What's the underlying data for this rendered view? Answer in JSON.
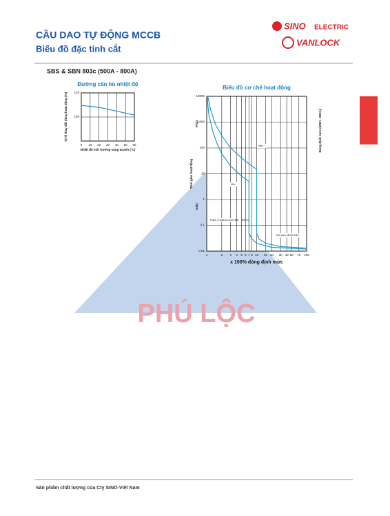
{
  "header": {
    "title": "CẦU DAO TỰ ĐỘNG MCCB",
    "subtitle": "Biểu đồ đặc tính cắt",
    "brand_top": "SINO",
    "brand_top_suffix": "ELECTRIC",
    "brand_bottom": "VANLOCK"
  },
  "section": "SBS & SBN 803c (500A - 800A)",
  "charts": [
    {
      "type": "line",
      "title": "Đường cân bù nhiệt độ",
      "ylabel": "Tỷ lệ thay đổi dòng hoạt động (%)",
      "xlabel": "Nhiệt độ môi trường xung quanh (°C)",
      "log": false,
      "xlim": [
        0,
        60
      ],
      "xticks": [
        0,
        10,
        20,
        30,
        40,
        50,
        60
      ],
      "ylim": [
        75,
        125
      ],
      "yticks": [
        100,
        125
      ],
      "grid": true,
      "series": [
        {
          "color": "#1f8fb8",
          "x": [
            0,
            10,
            20,
            30,
            40,
            50,
            60
          ],
          "values": [
            112,
            111,
            110,
            108,
            106,
            104,
            102
          ]
        }
      ]
    },
    {
      "type": "line",
      "title": "Biểu đồ cơ chế hoạt động",
      "ylabel": "Thời gian hoạt động",
      "xlabel": "x 100% dòng định mức",
      "y2label": "Dòng định mức (500A - 800A)",
      "log": true,
      "xlim": [
        1,
        100
      ],
      "xticks": [
        1,
        2,
        3,
        4,
        5,
        6,
        7,
        8,
        10,
        15,
        20,
        30,
        40,
        50,
        70,
        100
      ],
      "ylim": [
        0.01,
        10000
      ],
      "yticks": [
        0.01,
        0.1,
        1,
        10,
        100,
        1000,
        10000
      ],
      "grid": true,
      "units": [
        "Phút",
        "Giây"
      ],
      "annotations": [
        "Max.",
        "Min.",
        "Phạm vi ngắt tức thời (500 ~ 800%)",
        "Thời gian cắt tối thiểu"
      ],
      "series": [
        {
          "name": "Max.",
          "color": "#1f9cc8",
          "x": [
            1.05,
            1.2,
            1.5,
            2,
            3,
            5,
            8,
            10,
            10,
            11,
            15,
            30,
            100
          ],
          "values": [
            10000,
            3000,
            800,
            300,
            100,
            40,
            20,
            15,
            0.05,
            0.03,
            0.02,
            0.015,
            0.013
          ]
        },
        {
          "name": "Min.",
          "color": "#1f9cc8",
          "x": [
            1.02,
            1.1,
            1.3,
            1.6,
            2,
            3,
            5,
            7,
            7,
            8,
            10,
            20,
            100
          ],
          "values": [
            10000,
            2000,
            500,
            150,
            60,
            20,
            8,
            5,
            0.05,
            0.03,
            0.02,
            0.014,
            0.012
          ]
        }
      ]
    }
  ],
  "watermark": "PHÚ LỘC",
  "footer": "Sản phẩm chất lượng của Cty SINO-Việt Nam"
}
